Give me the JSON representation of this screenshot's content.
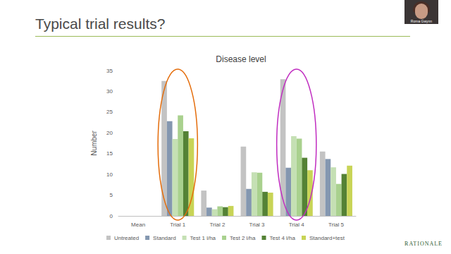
{
  "slide": {
    "title": "Typical trial results?",
    "speaker": "Roma Gwynn",
    "logo": "RATIONALE"
  },
  "chart_data": {
    "type": "bar",
    "title": "Disease level",
    "y_label": "Number",
    "categories": [
      "Mean",
      "Trial 1",
      "Trial 2",
      "Trial 3",
      "Trial 4",
      "Trial 5"
    ],
    "series": [
      {
        "name": "Untreated",
        "color": "#c3c3c3",
        "values": [
          null,
          32.5,
          6.1,
          16.7,
          32.9,
          15.5
        ]
      },
      {
        "name": "Standard",
        "color": "#8497b0",
        "values": [
          null,
          22.8,
          2.0,
          6.5,
          11.6,
          13.7
        ]
      },
      {
        "name": "Test 1 l/ha",
        "color": "#c5e0b4",
        "values": [
          null,
          18.5,
          1.6,
          10.5,
          19.2,
          11.7
        ]
      },
      {
        "name": "Test 2 l/ha",
        "color": "#a9d18e",
        "values": [
          null,
          24.2,
          2.3,
          10.4,
          18.6,
          7.7
        ]
      },
      {
        "name": "Test 4 l/ha",
        "color": "#548235",
        "values": [
          null,
          20.4,
          2.1,
          5.8,
          14.0,
          10.1
        ]
      },
      {
        "name": "Standard+test",
        "color": "#c8d456",
        "values": [
          null,
          18.7,
          2.4,
          5.6,
          11.0,
          12.1
        ]
      }
    ],
    "ylim": [
      0,
      35
    ],
    "yticks": [
      0,
      5,
      10,
      15,
      20,
      25,
      30,
      35
    ],
    "grid": false,
    "legend": "bottom"
  }
}
